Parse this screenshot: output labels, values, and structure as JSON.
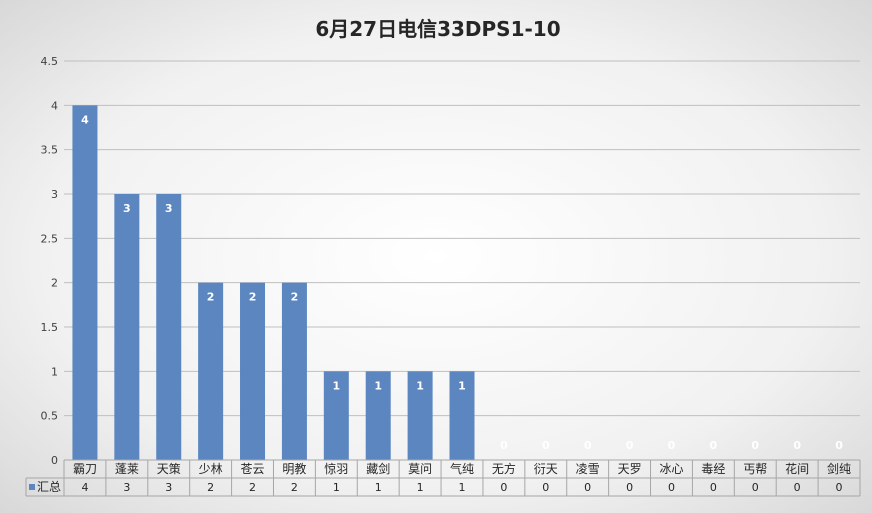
{
  "chart_data": {
    "type": "bar",
    "title": "6月27日电信33DPS1-10",
    "categories": [
      "霸刀",
      "蓬莱",
      "天策",
      "少林",
      "苍云",
      "明教",
      "惊羽",
      "藏剑",
      "莫问",
      "气纯",
      "无方",
      "衍天",
      "凌雪",
      "天罗",
      "冰心",
      "毒经",
      "丐帮",
      "花间",
      "剑纯"
    ],
    "series": [
      {
        "name": "汇总",
        "values": [
          4,
          3,
          3,
          2,
          2,
          2,
          1,
          1,
          1,
          1,
          0,
          0,
          0,
          0,
          0,
          0,
          0,
          0,
          0
        ],
        "color": "#5b86bf"
      }
    ],
    "y_ticks": [
      "0",
      "0.5",
      "1",
      "1.5",
      "2",
      "2.5",
      "3",
      "3.5",
      "4",
      "4.5"
    ],
    "ylim": [
      0,
      4.5
    ],
    "grid": true,
    "data_labels": true,
    "data_table": true
  }
}
